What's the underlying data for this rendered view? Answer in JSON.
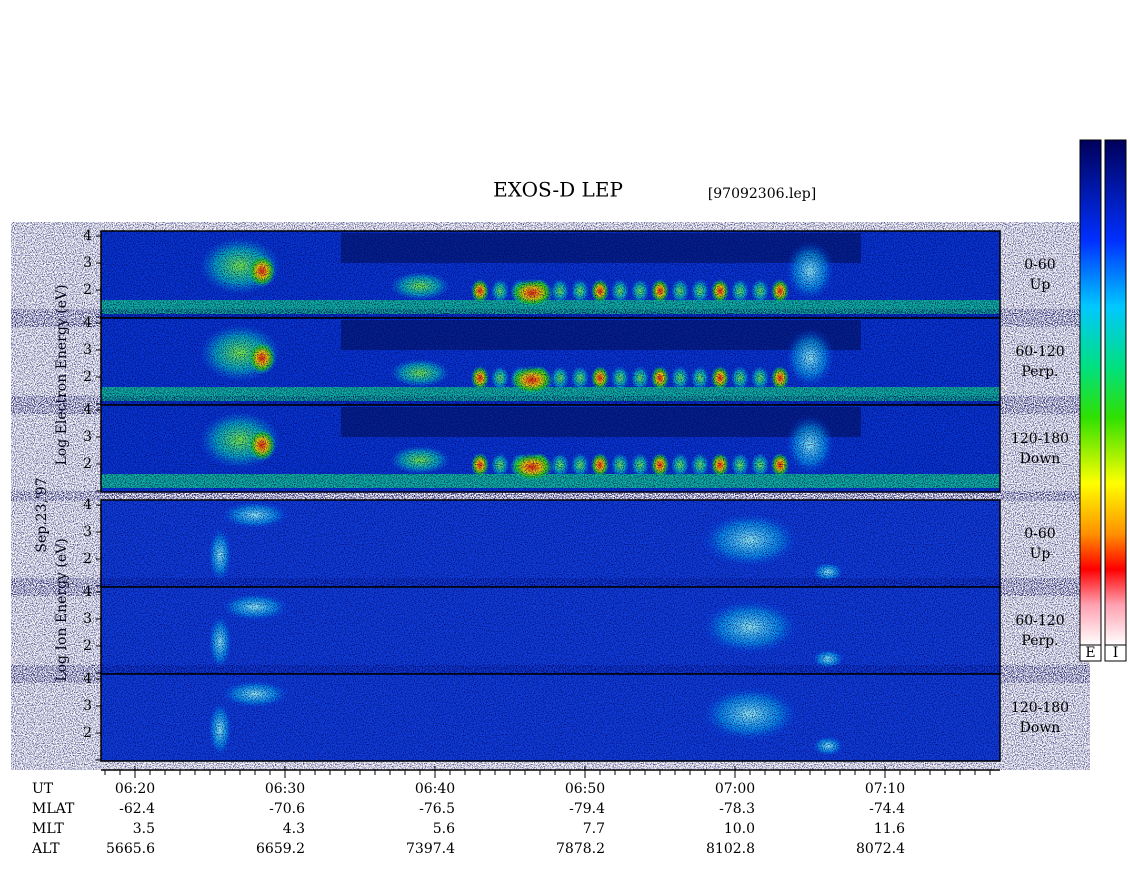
{
  "title": "EXOS-D LEP",
  "file": "[97092306.lep]",
  "date": "Sep.23,'97",
  "electron": {
    "label": "Log Electron Energy (eV)",
    "panels": [
      {
        "range": "0-60",
        "dir": "Up"
      },
      {
        "range": "60-120",
        "dir": "Perp."
      },
      {
        "range": "120-180",
        "dir": "Down"
      }
    ]
  },
  "ion": {
    "label": "Log Ion Energy (eV)",
    "panels": [
      {
        "range": "0-60",
        "dir": "Up"
      },
      {
        "range": "60-120",
        "dir": "Perp."
      },
      {
        "range": "120-180",
        "dir": "Down"
      }
    ]
  },
  "energy_ticks": [
    "4",
    "3",
    "2"
  ],
  "colorbars": [
    "E",
    "I"
  ],
  "ephemeris": {
    "rows": [
      {
        "name": "UT",
        "values": [
          "06:20",
          "06:30",
          "06:40",
          "06:50",
          "07:00",
          "07:10"
        ]
      },
      {
        "name": "MLAT",
        "values": [
          "-62.4",
          "-70.6",
          "-76.5",
          "-79.4",
          "-78.3",
          "-74.4"
        ]
      },
      {
        "name": "MLT",
        "values": [
          "3.5",
          "4.3",
          "5.6",
          "7.7",
          "10.0",
          "11.6"
        ]
      },
      {
        "name": "ALT",
        "values": [
          "5665.6",
          "6659.2",
          "7397.4",
          "7878.2",
          "8102.8",
          "8072.4"
        ]
      }
    ]
  }
}
